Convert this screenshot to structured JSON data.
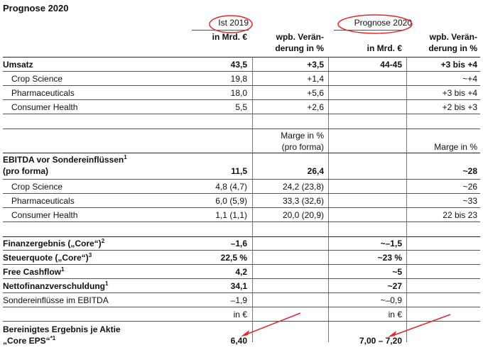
{
  "title": "Prognose 2020",
  "headers": {
    "ist": "Ist 2019",
    "prognose": "Prognose 2020",
    "mrd_1": "in Mrd. €",
    "mrd_2": "in Mrd. €",
    "wpb1_a": "wpb. Verän-",
    "wpb1_b": "derung in %",
    "wpb2_a": "wpb. Verän-",
    "wpb2_b": "derung in %"
  },
  "rows_a": [
    {
      "label": "Umsatz",
      "bold": true,
      "ist": "43,5",
      "chg": "+3,5",
      "prog": "44-45",
      "pchg": "+3 bis +4"
    },
    {
      "label": "Crop Science",
      "ist": "19,8",
      "chg": "+1,4",
      "prog": "",
      "pchg": "~+4"
    },
    {
      "label": "Pharmaceuticals",
      "ist": "18,0",
      "chg": "+5,6",
      "prog": "",
      "pchg": "+3 bis +4"
    },
    {
      "label": "Consumer Health",
      "ist": "5,5",
      "chg": "+2,6",
      "prog": "",
      "pchg": "+2 bis +3"
    }
  ],
  "marge_header": {
    "left_a": "Marge in %",
    "left_b": "(pro forma)",
    "right": "Marge in %"
  },
  "ebitda": {
    "label_a": "EBITDA vor Sondereinflüssen",
    "sup": "1",
    "label_b": "(pro forma)",
    "ist": "11,5",
    "chg": "26,4",
    "pchg": "~28"
  },
  "rows_b": [
    {
      "label": "Crop Science",
      "ist": "4,8 (4,7)",
      "chg": "24,2 (23,8)",
      "pchg": "~26"
    },
    {
      "label": "Pharmaceuticals",
      "ist": "6,0 (5,9)",
      "chg": "33,3 (32,6)",
      "pchg": "~33"
    },
    {
      "label": "Consumer Health",
      "ist": "1,1 (1,1)",
      "chg": "20,0 (20,9)",
      "pchg": "22 bis 23"
    }
  ],
  "rows_c": [
    {
      "label": "Finanzergebnis („Core“)",
      "sup": "2",
      "bold": true,
      "ist": "–1,6",
      "prog": "~–1,5"
    },
    {
      "label": "Steuerquote („Core“)",
      "sup": "3",
      "bold": true,
      "ist": "22,5 %",
      "prog": "~23 %"
    },
    {
      "label": "Free Cashflow",
      "sup": "1",
      "bold": true,
      "ist": "4,2",
      "prog": "~5"
    },
    {
      "label": "Nettofinanzverschuldung",
      "sup": "1",
      "bold": true,
      "ist": "34,1",
      "prog": "~27"
    },
    {
      "label": "Sondereinflüsse im EBITDA",
      "ist": "–1,9",
      "prog": "~–0,9"
    }
  ],
  "in_eur": {
    "ist": "in €",
    "prog": "in €"
  },
  "eps": {
    "label_a": "Bereinigtes Ergebnis je Aktie",
    "label_b": "„Core EPS“",
    "sup": "*1",
    "ist": "6,40",
    "prog": "7,00 – 7,20"
  },
  "colors": {
    "annotation": "#e8262d",
    "text": "#111111",
    "rule": "#555555"
  }
}
